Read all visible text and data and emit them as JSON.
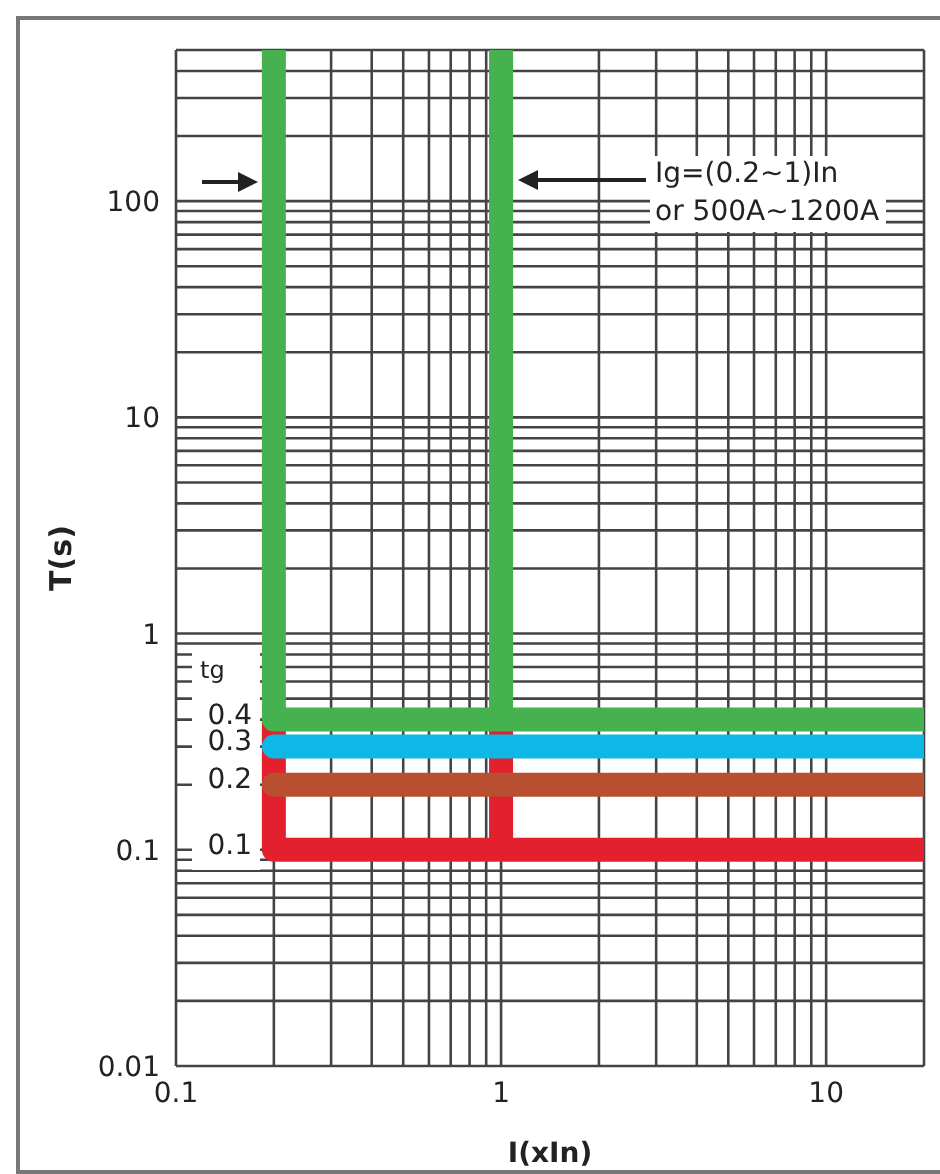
{
  "chart_data": {
    "type": "line",
    "xlabel": "I(xIn)",
    "ylabel": "T(s)",
    "xlim": [
      0.1,
      20
    ],
    "ylim": [
      0.01,
      500
    ],
    "log": "xy",
    "grid": true,
    "marker": "none",
    "line_style": "solid",
    "xticks": [
      0.1,
      {
        "value": 0.2,
        "label": null
      },
      {
        "value": 0.3,
        "label": null
      },
      {
        "value": 0.4,
        "label": null
      },
      {
        "value": 0.5,
        "label": null
      },
      {
        "value": 0.6,
        "label": null
      },
      {
        "value": 0.7,
        "label": null
      },
      {
        "value": 0.8,
        "label": null
      },
      {
        "value": 0.9,
        "label": null
      },
      1,
      {
        "value": 2,
        "label": null
      },
      {
        "value": 3,
        "label": null
      },
      {
        "value": 4,
        "label": null
      },
      {
        "value": 5,
        "label": null
      },
      {
        "value": 6,
        "label": null
      },
      {
        "value": 7,
        "label": null
      },
      {
        "value": 8,
        "label": null
      },
      {
        "value": 9,
        "label": null
      },
      10,
      {
        "value": 20,
        "label": null
      }
    ],
    "yticks": [
      0.01,
      {
        "value": 0.02,
        "label": null
      },
      {
        "value": 0.03,
        "label": null
      },
      {
        "value": 0.04,
        "label": null
      },
      {
        "value": 0.05,
        "label": null
      },
      {
        "value": 0.06,
        "label": null
      },
      {
        "value": 0.07,
        "label": null
      },
      {
        "value": 0.08,
        "label": null
      },
      {
        "value": 0.09,
        "label": null
      },
      0.1,
      {
        "value": 0.2,
        "label": null
      },
      {
        "value": 0.3,
        "label": null
      },
      {
        "value": 0.4,
        "label": null
      },
      {
        "value": 0.5,
        "label": null
      },
      {
        "value": 0.6,
        "label": null
      },
      {
        "value": 0.7,
        "label": null
      },
      {
        "value": 0.8,
        "label": null
      },
      {
        "value": 0.9,
        "label": null
      },
      1,
      {
        "value": 2,
        "label": null
      },
      {
        "value": 3,
        "label": null
      },
      {
        "value": 4,
        "label": null
      },
      {
        "value": 5,
        "label": null
      },
      {
        "value": 6,
        "label": null
      },
      {
        "value": 7,
        "label": null
      },
      {
        "value": 8,
        "label": null
      },
      {
        "value": 9,
        "label": null
      },
      10,
      {
        "value": 20,
        "label": null
      },
      {
        "value": 30,
        "label": null
      },
      {
        "value": 40,
        "label": null
      },
      {
        "value": 50,
        "label": null
      },
      {
        "value": 60,
        "label": null
      },
      {
        "value": 70,
        "label": null
      },
      {
        "value": 80,
        "label": null
      },
      {
        "value": 90,
        "label": null
      },
      100,
      {
        "value": 200,
        "label": null
      },
      {
        "value": 300,
        "label": null
      },
      {
        "value": 400,
        "label": null
      },
      {
        "value": 500,
        "label": null
      }
    ],
    "series": [
      {
        "color": "#e2202e",
        "x": [
          0.2,
          0.2,
          20,
          null,
          1,
          1
        ],
        "values": [
          0.4,
          0.1,
          0.1,
          null,
          0.4,
          0.1
        ]
      },
      {
        "color": "#b84f31",
        "x": [
          0.2,
          20
        ],
        "values": [
          0.2,
          0.2
        ]
      },
      {
        "color": "#0db8e6",
        "x": [
          0.2,
          20
        ],
        "values": [
          0.3,
          0.3
        ]
      },
      {
        "color": "#45b24f",
        "x": [
          0.2,
          0.2,
          20,
          null,
          1,
          1
        ],
        "values": [
          500,
          0.4,
          0.4,
          null,
          500,
          0.4
        ]
      }
    ],
    "annotations": [
      "Ig=(0.2~1)In",
      "or 500A~1200A",
      "tg",
      "0.4",
      "0.3",
      "0.2",
      "0.1"
    ]
  }
}
